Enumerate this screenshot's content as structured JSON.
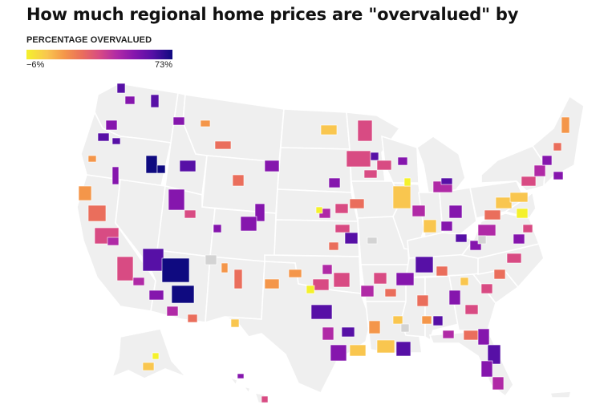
{
  "title": "How much regional home prices are \"overvalued\" by",
  "legend": {
    "label": "PERCENTAGE OVERVALUED",
    "min": "−6%",
    "max": "73%",
    "min_value": -6,
    "max_value": 73,
    "scale_colors": [
      "#f4f12c",
      "#f9c64f",
      "#f4964a",
      "#ea6e5c",
      "#d84b83",
      "#b02aa6",
      "#8516ad",
      "#5710a6",
      "#0f0a80"
    ]
  },
  "map": {
    "base_color": "#efefef",
    "no_data_color": "#d3d3d3",
    "border_color": "#ffffff"
  }
}
